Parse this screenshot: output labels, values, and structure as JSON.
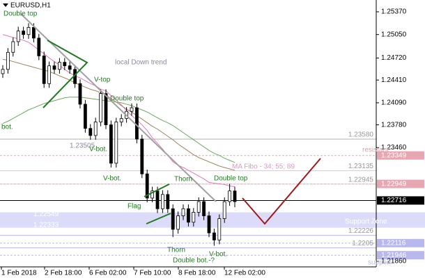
{
  "symbol": "EURUSD,H1",
  "chart_data": {
    "type": "candlestick",
    "ylim": [
      1.21772,
      1.25536
    ],
    "yticks": [
      {
        "value": 1.2537,
        "label": "1.25370"
      },
      {
        "value": 1.2505,
        "label": "1.25050"
      },
      {
        "value": 1.2472,
        "label": "1.24720"
      },
      {
        "value": 1.2441,
        "label": "1.24410"
      },
      {
        "value": 1.2409,
        "label": "1.24090"
      },
      {
        "value": 1.2378,
        "label": "1.23780"
      },
      {
        "value": 1.2346,
        "label": "1.23460"
      },
      {
        "value": 1.2186,
        "label": "1.21860"
      }
    ],
    "xlabels": [
      "1 Feb 2018",
      "2 Feb 18:00",
      "6 Feb 02:00",
      "7 Feb 10:00",
      "8 Feb 18:00",
      "12 Feb 02:00"
    ],
    "color": "#000000",
    "categories": [
      null,
      null,
      null,
      null,
      null,
      null,
      null,
      null,
      null,
      null,
      null,
      null,
      null,
      null,
      null,
      null,
      null,
      null,
      null,
      null,
      null,
      null,
      null,
      null,
      null,
      null,
      null,
      null,
      null,
      null,
      null,
      null,
      null,
      null,
      null,
      null,
      null,
      null,
      null,
      null,
      null,
      null,
      null,
      null,
      null,
      null
    ],
    "ohlc": [
      [
        1.245,
        1.2462,
        1.2444,
        1.2456
      ],
      [
        1.2456,
        1.2486,
        1.245,
        1.248
      ],
      [
        1.248,
        1.2501,
        1.2474,
        1.2495
      ],
      [
        1.2495,
        1.2516,
        1.2489,
        1.251
      ],
      [
        1.251,
        1.2516,
        1.2499,
        1.2505
      ],
      [
        1.2505,
        1.2521,
        1.2499,
        1.2515
      ],
      [
        1.2515,
        1.2521,
        1.2494,
        1.25
      ],
      [
        1.25,
        1.2506,
        1.2469,
        1.2475
      ],
      [
        1.2475,
        1.2481,
        1.243,
        1.2436
      ],
      [
        1.2436,
        1.2467,
        1.243,
        1.2461
      ],
      [
        1.2461,
        1.2467,
        1.245,
        1.2456
      ],
      [
        1.2456,
        1.2472,
        1.245,
        1.2466
      ],
      [
        1.2466,
        1.2472,
        1.2455,
        1.2461
      ],
      [
        1.2461,
        1.2467,
        1.245,
        1.2456
      ],
      [
        1.2456,
        1.2462,
        1.243,
        1.2436
      ],
      [
        1.2436,
        1.2442,
        1.2401,
        1.2407
      ],
      [
        1.2407,
        1.2413,
        1.2367,
        1.2373
      ],
      [
        1.2373,
        1.2379,
        1.2357,
        1.2363
      ],
      [
        1.2363,
        1.2388,
        1.2357,
        1.2382
      ],
      [
        1.2382,
        1.2428,
        1.2376,
        1.2422
      ],
      [
        1.2422,
        1.2428,
        1.2372,
        1.2378
      ],
      [
        1.2378,
        1.2384,
        1.2318,
        1.2324
      ],
      [
        1.2324,
        1.2388,
        1.2318,
        1.2382
      ],
      [
        1.2382,
        1.2393,
        1.2376,
        1.2387
      ],
      [
        1.2387,
        1.2403,
        1.2381,
        1.2397
      ],
      [
        1.2397,
        1.2408,
        1.2391,
        1.2402
      ],
      [
        1.2402,
        1.2408,
        1.2352,
        1.2358
      ],
      [
        1.2358,
        1.2364,
        1.2303,
        1.2309
      ],
      [
        1.2309,
        1.2315,
        1.2269,
        1.2275
      ],
      [
        1.2275,
        1.2291,
        1.2269,
        1.2285
      ],
      [
        1.2285,
        1.2291,
        1.2254,
        1.226
      ],
      [
        1.226,
        1.2286,
        1.2254,
        1.228
      ],
      [
        1.228,
        1.2286,
        1.2254,
        1.226
      ],
      [
        1.226,
        1.2266,
        1.222,
        1.2231
      ],
      [
        1.2231,
        1.2256,
        1.2225,
        1.225
      ],
      [
        1.225,
        1.2266,
        1.2244,
        1.226
      ],
      [
        1.226,
        1.2266,
        1.2235,
        1.2241
      ],
      [
        1.2241,
        1.2261,
        1.2235,
        1.2255
      ],
      [
        1.2255,
        1.2276,
        1.2249,
        1.227
      ],
      [
        1.227,
        1.2276,
        1.2244,
        1.225
      ],
      [
        1.225,
        1.2256,
        1.222,
        1.2226
      ],
      [
        1.2226,
        1.2232,
        1.2208,
        1.2216
      ],
      [
        1.2216,
        1.2252,
        1.221,
        1.2246
      ],
      [
        1.2246,
        1.2276,
        1.224,
        1.227
      ],
      [
        1.227,
        1.2295,
        1.2264,
        1.2285
      ],
      [
        1.2285,
        1.2291,
        1.2262,
        1.227
      ]
    ],
    "series": [
      {
        "color": "#e07ab8",
        "values": [
          1.2505,
          1.2503,
          1.2501,
          1.2499,
          1.2497,
          1.2494,
          1.2489,
          1.2483,
          1.2478,
          1.2472,
          1.2467,
          1.2462,
          1.2456,
          1.2451,
          1.2447,
          1.2444,
          1.244,
          1.2436,
          1.2433,
          1.2428,
          1.2426,
          1.2419,
          1.2413,
          1.2406,
          1.2398,
          1.2391,
          1.2385,
          1.2378,
          1.237,
          1.236,
          1.2352,
          1.2344,
          1.2335,
          1.2326,
          1.2321,
          1.2318,
          1.2314,
          1.231,
          1.2306,
          1.2302,
          1.2297,
          1.2296,
          1.2295,
          1.2294,
          1.2292,
          1.2291
        ]
      },
      {
        "color": "#a08060",
        "values": [
          1.247,
          1.2469,
          1.2467,
          1.2465,
          1.2463,
          1.2461,
          1.2459,
          1.2457,
          1.2455,
          1.2453,
          1.245,
          1.2447,
          1.2444,
          1.2441,
          1.2437,
          1.2434,
          1.2431,
          1.2428,
          1.2426,
          1.2423,
          1.242,
          1.2415,
          1.241,
          1.2405,
          1.24,
          1.2396,
          1.2391,
          1.2386,
          1.2381,
          1.2376,
          1.2372,
          1.2367,
          1.2362,
          1.2357,
          1.2351,
          1.2346,
          1.2341,
          1.2336,
          1.2332,
          1.2329,
          1.2326,
          1.2323,
          1.232,
          1.2318,
          1.2316,
          1.2314
        ]
      },
      {
        "color": "#6aaa5a",
        "values": [
          1.238,
          1.2383,
          1.2387,
          1.2391,
          1.2395,
          1.2399,
          1.2402,
          1.2405,
          1.2408,
          1.241,
          1.2412,
          1.2414,
          1.2416,
          1.2417,
          1.2417,
          1.2417,
          1.2416,
          1.2415,
          1.2414,
          1.2413,
          1.2412,
          1.2411,
          1.241,
          1.2409,
          1.2407,
          1.2405,
          1.2402,
          1.2399,
          1.2396,
          1.2392,
          1.2388,
          1.2384,
          1.2381,
          1.2377,
          1.2372,
          1.2367,
          1.2362,
          1.2357,
          1.2352,
          1.2347,
          1.2342,
          1.2338,
          1.2335,
          1.2331,
          1.2328,
          1.2325
        ]
      }
    ],
    "levels": [
      {
        "value": 1.2358,
        "label": "1.23580",
        "color": "#b0b0b0",
        "style": "text"
      },
      {
        "value": 1.23349,
        "label": "1.23349",
        "color": "#e8a6b2",
        "style": "box"
      },
      {
        "value": 1.23135,
        "label": "1.23135",
        "color": "#e8c0c8",
        "style": "text"
      },
      {
        "value": 1.22949,
        "label": "1.22949",
        "color": "#e8a6b2",
        "style": "box"
      },
      {
        "value": 1.22945,
        "label": "1.22945",
        "color": "#d0d0d0",
        "style": "text"
      },
      {
        "value": 1.22716,
        "label": "1.22716",
        "color": "#000000",
        "style": "box"
      },
      {
        "value": 1.22226,
        "label": "1.22226",
        "color": "#b8b8ee",
        "style": "text"
      },
      {
        "value": 1.22116,
        "label": "1.22116",
        "color": "#b8b8ee",
        "style": "box"
      },
      {
        "value": 1.2205,
        "color": "#b8b8ee",
        "style": "text"
      },
      {
        "value": 1.21946,
        "label": "1.21946",
        "color": "#b8b8ee",
        "style": "box"
      }
    ],
    "zone": {
      "values": [
        1.22549,
        1.22333
      ],
      "labels": [
        "1.22549",
        "1.22333"
      ],
      "color": "#dcdcfa"
    },
    "annotations": [
      "Double top",
      "local Down trend",
      "V-top",
      "Double top",
      "bot.",
      "1.23505",
      "V-bot.",
      "V-bot.",
      "Thorn",
      "Double top",
      "Flag",
      "Thorn",
      "V-bot.",
      "Double bot.-?",
      "MA Fibo - 34; 55; 89",
      "resistant",
      "Support Zone",
      "support"
    ]
  }
}
